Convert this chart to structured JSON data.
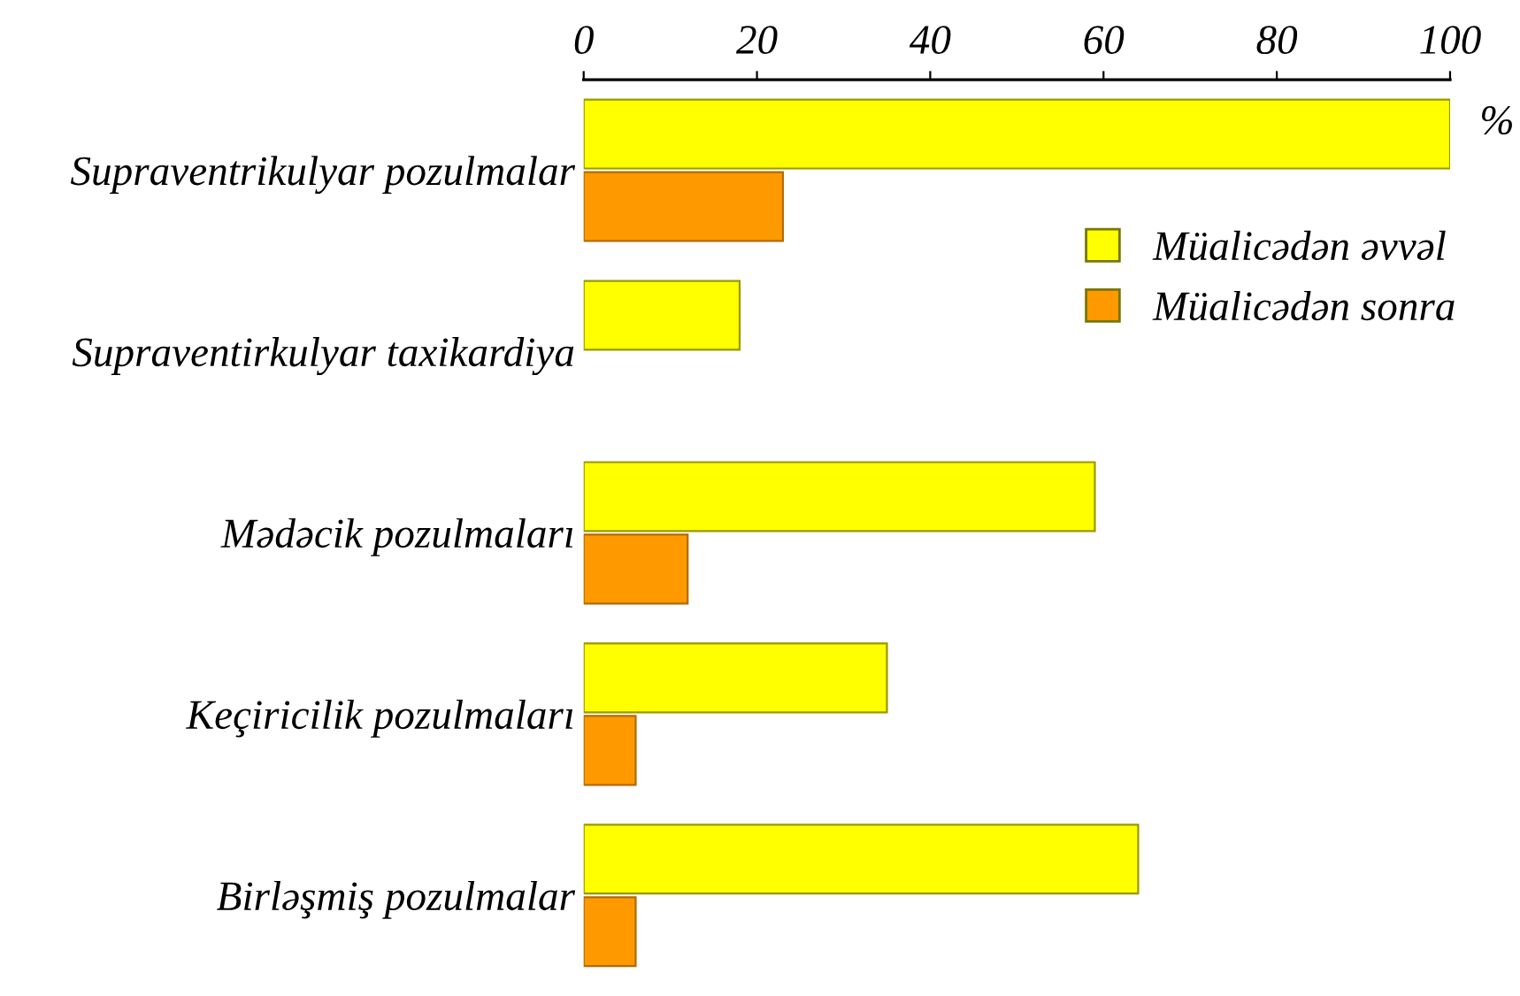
{
  "chart_data": {
    "type": "bar",
    "orientation": "horizontal",
    "xlabel": "%",
    "categories": [
      "Supraventrikulyar pozulmalar",
      "Supraventirkulyar taxikardiya",
      "Mədəcik pozulmaları",
      "Keçiricilik pozulmaları",
      "Birləşmiş pozulmalar"
    ],
    "series": [
      {
        "name": "Müalicədən əvvəl",
        "color": "#ffff00",
        "values": [
          100,
          18,
          59,
          35,
          64
        ]
      },
      {
        "name": "Müalicədən sonra",
        "color": "#ff9900",
        "values": [
          23,
          null,
          12,
          6,
          6
        ]
      }
    ],
    "xlim": [
      0,
      100
    ],
    "xticks": [
      0,
      20,
      40,
      60,
      80,
      100
    ],
    "legend": "right",
    "grid": false
  }
}
